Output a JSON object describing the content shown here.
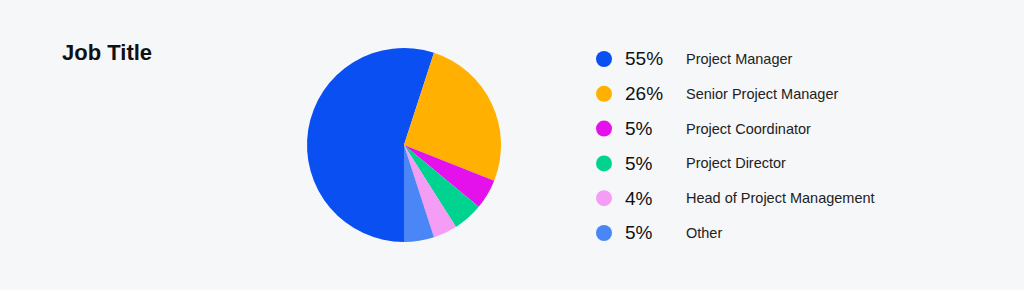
{
  "chart_data": {
    "type": "pie",
    "title": "Job Title",
    "categories": [
      "Project Manager",
      "Senior Project Manager",
      "Project Coordinator",
      "Project Director",
      "Head of Project Management",
      "Other"
    ],
    "values": [
      55,
      26,
      5,
      5,
      4,
      5
    ],
    "value_labels": [
      "55%",
      "26%",
      "5%",
      "5%",
      "4%",
      "5%"
    ],
    "colors": [
      "#0a4ff2",
      "#ffb000",
      "#e511ec",
      "#00d38f",
      "#f59df5",
      "#4a86f5"
    ],
    "legend": "right"
  }
}
